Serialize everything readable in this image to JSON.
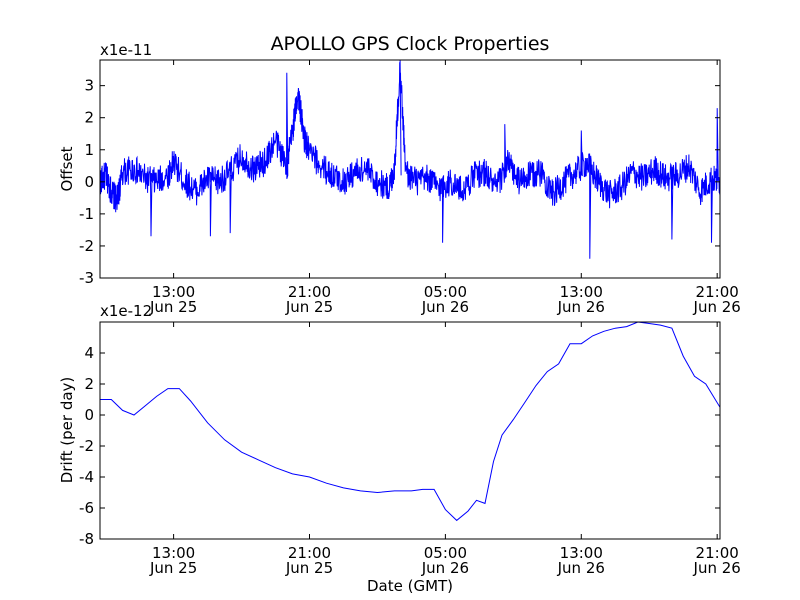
{
  "figure_title": "APOLLO GPS Clock Properties",
  "chart_data": [
    {
      "type": "line",
      "title": "APOLLO GPS Clock Properties",
      "ylabel": "Offset",
      "xlabel": "",
      "scale_label": "x1e-11",
      "ylim": [
        -3,
        3.8
      ],
      "yticks": [
        -3,
        -2,
        -1,
        0,
        1,
        2,
        3
      ],
      "xlim": [
        "Jun 25 08:40",
        "Jun 26 21:10"
      ],
      "x_ticks": [
        {
          "time": "Jun 25 13:00",
          "line1": "13:00",
          "line2": "Jun 25"
        },
        {
          "time": "Jun 25 21:00",
          "line1": "21:00",
          "line2": "Jun 25"
        },
        {
          "time": "Jun 26 05:00",
          "line1": "05:00",
          "line2": "Jun 26"
        },
        {
          "time": "Jun 26 13:00",
          "line1": "13:00",
          "line2": "Jun 26"
        },
        {
          "time": "Jun 26 21:00",
          "line1": "21:00",
          "line2": "Jun 26"
        }
      ],
      "series": [
        {
          "color": "#0000ff",
          "style": "noisy",
          "x": [
            "Jun 25 08:40",
            "Jun 25 09:00",
            "Jun 25 09:20",
            "Jun 25 09:40",
            "Jun 25 10:00",
            "Jun 25 10:40",
            "Jun 25 11:20",
            "Jun 25 12:00",
            "Jun 25 12:40",
            "Jun 25 13:00",
            "Jun 25 13:40",
            "Jun 25 14:20",
            "Jun 25 15:00",
            "Jun 25 15:40",
            "Jun 25 16:20",
            "Jun 25 17:00",
            "Jun 25 17:40",
            "Jun 25 18:20",
            "Jun 25 19:00",
            "Jun 25 19:40",
            "Jun 25 20:00",
            "Jun 25 20:20",
            "Jun 25 20:40",
            "Jun 25 21:00",
            "Jun 25 21:40",
            "Jun 25 22:20",
            "Jun 25 23:00",
            "Jun 25 23:40",
            "Jun 26 00:20",
            "Jun 26 01:00",
            "Jun 26 01:40",
            "Jun 26 02:00",
            "Jun 26 02:20",
            "Jun 26 02:40",
            "Jun 26 03:20",
            "Jun 26 04:00",
            "Jun 26 04:40",
            "Jun 26 05:20",
            "Jun 26 06:00",
            "Jun 26 06:40",
            "Jun 26 07:20",
            "Jun 26 08:00",
            "Jun 26 08:40",
            "Jun 26 09:20",
            "Jun 26 10:00",
            "Jun 26 10:40",
            "Jun 26 11:20",
            "Jun 26 12:00",
            "Jun 26 12:40",
            "Jun 26 13:20",
            "Jun 26 14:00",
            "Jun 26 14:40",
            "Jun 26 15:20",
            "Jun 26 16:00",
            "Jun 26 16:40",
            "Jun 26 17:20",
            "Jun 26 18:00",
            "Jun 26 18:40",
            "Jun 26 19:20",
            "Jun 26 20:00",
            "Jun 26 20:40",
            "Jun 26 21:10"
          ],
          "y": [
            0.0,
            0.2,
            -0.3,
            -0.6,
            0.3,
            0.4,
            0.1,
            0.0,
            0.2,
            0.6,
            0.0,
            -0.3,
            0.1,
            0.0,
            0.3,
            0.8,
            0.4,
            0.6,
            1.3,
            0.5,
            1.6,
            2.8,
            1.4,
            0.9,
            0.5,
            0.2,
            0.0,
            0.3,
            0.4,
            0.0,
            -0.2,
            0.4,
            3.6,
            0.3,
            0.0,
            0.1,
            -0.2,
            0.0,
            -0.3,
            0.2,
            0.3,
            -0.2,
            0.6,
            0.0,
            0.2,
            0.3,
            -0.4,
            0.0,
            0.3,
            0.6,
            0.0,
            -0.4,
            -0.2,
            0.3,
            0.1,
            0.4,
            0.1,
            0.2,
            0.5,
            -0.3,
            0.1,
            0.0
          ],
          "spikes": [
            {
              "x": "Jun 25 11:40",
              "y": -1.7
            },
            {
              "x": "Jun 25 15:10",
              "y": -1.7
            },
            {
              "x": "Jun 25 16:20",
              "y": -1.6
            },
            {
              "x": "Jun 25 19:40",
              "y": 3.4
            },
            {
              "x": "Jun 26 02:20",
              "y": 3.8
            },
            {
              "x": "Jun 26 04:50",
              "y": -1.9
            },
            {
              "x": "Jun 26 08:30",
              "y": 1.8
            },
            {
              "x": "Jun 26 13:00",
              "y": 1.6
            },
            {
              "x": "Jun 26 13:30",
              "y": -2.4
            },
            {
              "x": "Jun 26 18:20",
              "y": -1.8
            },
            {
              "x": "Jun 26 20:40",
              "y": -1.9
            },
            {
              "x": "Jun 26 21:00",
              "y": 2.3
            }
          ]
        }
      ]
    },
    {
      "type": "line",
      "title": "",
      "ylabel": "Drift (per day)",
      "xlabel": "Date (GMT)",
      "scale_label": "x1e-12",
      "ylim": [
        -8,
        6
      ],
      "yticks": [
        -8,
        -6,
        -4,
        -2,
        0,
        2,
        4
      ],
      "xlim": [
        "Jun 25 08:40",
        "Jun 26 21:10"
      ],
      "x_ticks": [
        {
          "time": "Jun 25 13:00",
          "line1": "13:00",
          "line2": "Jun 25"
        },
        {
          "time": "Jun 25 21:00",
          "line1": "21:00",
          "line2": "Jun 25"
        },
        {
          "time": "Jun 26 05:00",
          "line1": "05:00",
          "line2": "Jun 26"
        },
        {
          "time": "Jun 26 13:00",
          "line1": "13:00",
          "line2": "Jun 26"
        },
        {
          "time": "Jun 26 21:00",
          "line1": "21:00",
          "line2": "Jun 26"
        }
      ],
      "series": [
        {
          "color": "#0000ff",
          "style": "smooth",
          "x": [
            "Jun 25 08:40",
            "Jun 25 09:20",
            "Jun 25 10:00",
            "Jun 25 10:40",
            "Jun 25 11:20",
            "Jun 25 12:00",
            "Jun 25 12:40",
            "Jun 25 13:20",
            "Jun 25 14:00",
            "Jun 25 15:00",
            "Jun 25 16:00",
            "Jun 25 17:00",
            "Jun 25 18:00",
            "Jun 25 19:00",
            "Jun 25 20:00",
            "Jun 25 21:00",
            "Jun 25 22:00",
            "Jun 25 23:00",
            "Jun 26 00:00",
            "Jun 26 01:00",
            "Jun 26 02:00",
            "Jun 26 03:00",
            "Jun 26 03:40",
            "Jun 26 04:20",
            "Jun 26 05:00",
            "Jun 26 05:40",
            "Jun 26 06:20",
            "Jun 26 06:50",
            "Jun 26 07:20",
            "Jun 26 07:50",
            "Jun 26 08:20",
            "Jun 26 09:00",
            "Jun 26 09:40",
            "Jun 26 10:20",
            "Jun 26 11:00",
            "Jun 26 11:40",
            "Jun 26 12:20",
            "Jun 26 13:00",
            "Jun 26 13:40",
            "Jun 26 14:20",
            "Jun 26 15:00",
            "Jun 26 15:40",
            "Jun 26 16:20",
            "Jun 26 17:00",
            "Jun 26 17:40",
            "Jun 26 18:20",
            "Jun 26 19:00",
            "Jun 26 19:40",
            "Jun 26 20:20",
            "Jun 26 21:10"
          ],
          "y": [
            1.0,
            1.0,
            0.3,
            0.0,
            0.6,
            1.2,
            1.7,
            1.7,
            0.9,
            -0.5,
            -1.6,
            -2.4,
            -2.9,
            -3.4,
            -3.8,
            -4.0,
            -4.4,
            -4.7,
            -4.9,
            -5.0,
            -4.9,
            -4.9,
            -4.8,
            -4.8,
            -6.1,
            -6.8,
            -6.2,
            -5.5,
            -5.7,
            -3.0,
            -1.3,
            -0.3,
            0.8,
            1.9,
            2.8,
            3.3,
            4.6,
            4.6,
            5.1,
            5.4,
            5.6,
            5.7,
            6.0,
            5.9,
            5.8,
            5.6,
            3.8,
            2.5,
            2.0,
            0.5
          ]
        }
      ]
    }
  ]
}
